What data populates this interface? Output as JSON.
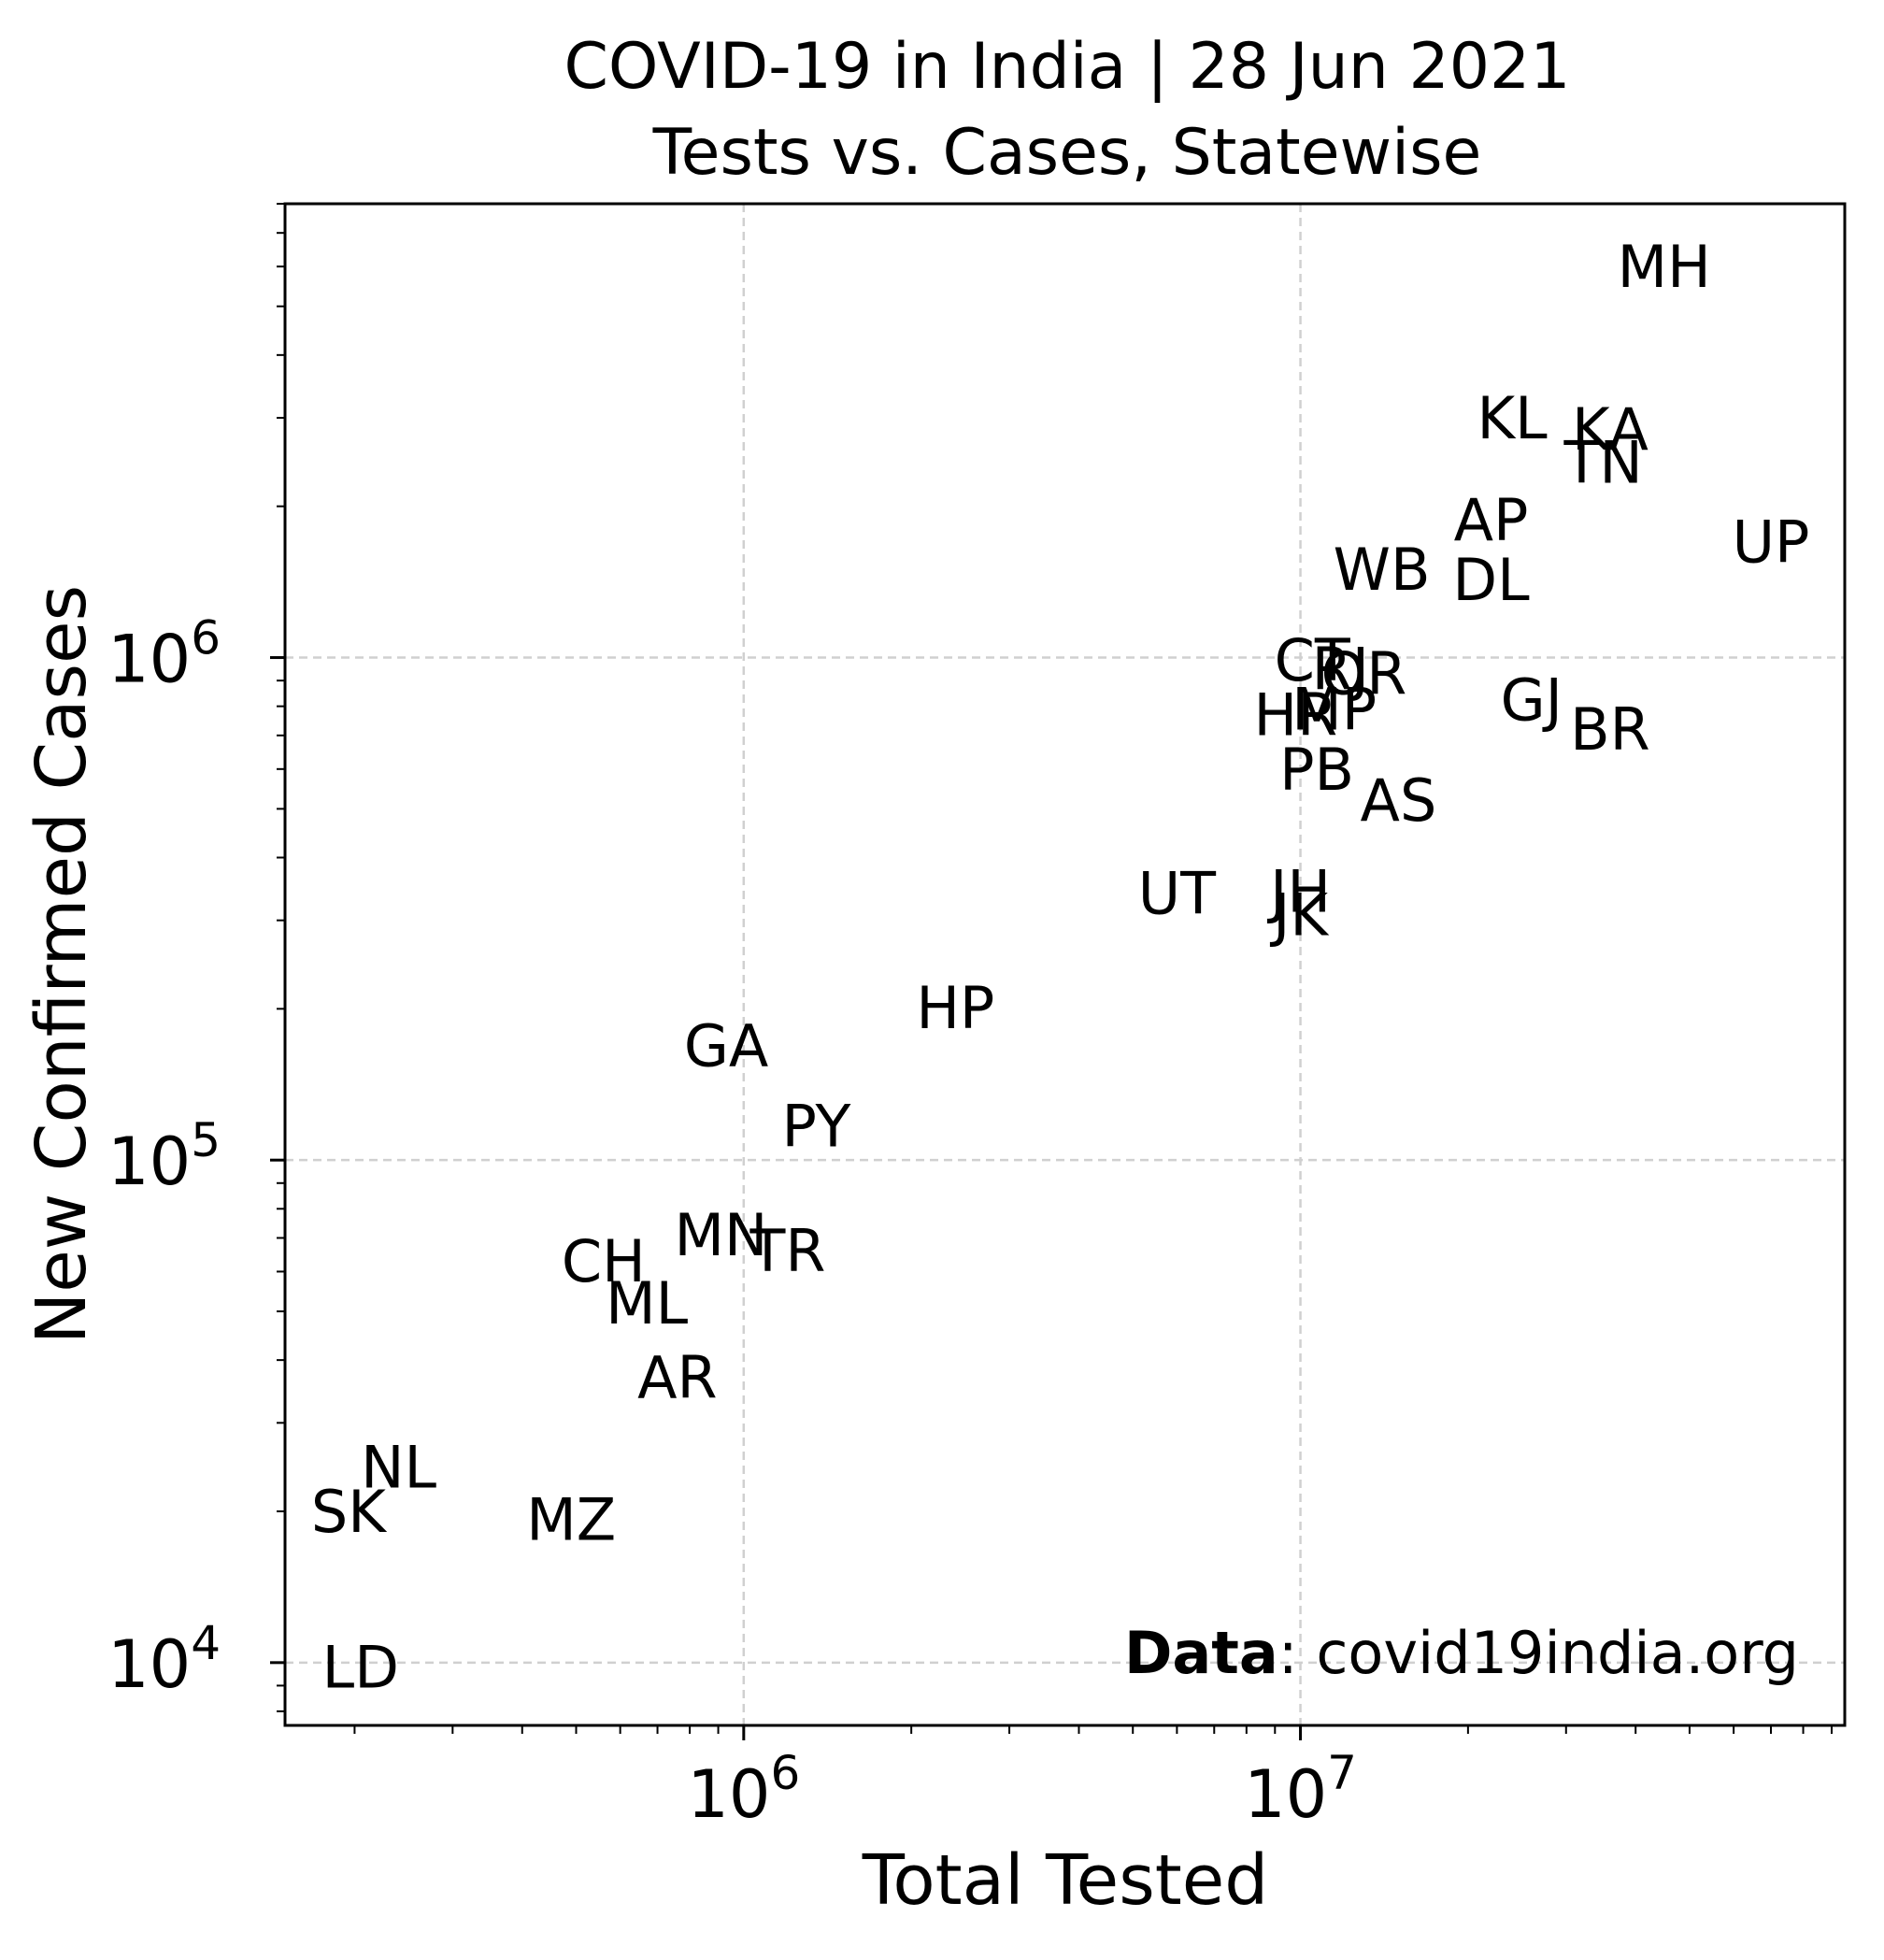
{
  "chart_data": {
    "type": "scatter",
    "title": [
      "COVID-19 in India  |  28 Jun 2021",
      "Tests vs. Cases, Statewise"
    ],
    "xlabel": "Total Tested",
    "ylabel": "New Confirmed Cases",
    "xscale": "log",
    "yscale": "log",
    "xlim": [
      150000,
      95000000
    ],
    "ylim": [
      7500,
      8000000
    ],
    "xticks": [
      {
        "value": 1000000,
        "label": "10^6"
      },
      {
        "value": 10000000,
        "label": "10^7"
      }
    ],
    "yticks": [
      {
        "value": 10000,
        "label": "10^4"
      },
      {
        "value": 100000,
        "label": "10^5"
      },
      {
        "value": 1000000,
        "label": "10^6"
      }
    ],
    "grid": true,
    "grid_style": "dashed",
    "marker": "text-label",
    "credit": {
      "bold": "Data",
      "rest": ": covid19india.org",
      "placement": "bottom-right"
    },
    "points": [
      {
        "label": "MH",
        "x": 45000000,
        "y": 6000000
      },
      {
        "label": "KL",
        "x": 24000000,
        "y": 3000000
      },
      {
        "label": "KA",
        "x": 36000000,
        "y": 2850000
      },
      {
        "label": "TN",
        "x": 35000000,
        "y": 2450000
      },
      {
        "label": "AP",
        "x": 22000000,
        "y": 1880000
      },
      {
        "label": "UP",
        "x": 70000000,
        "y": 1700000
      },
      {
        "label": "WB",
        "x": 14000000,
        "y": 1500000
      },
      {
        "label": "DL",
        "x": 22000000,
        "y": 1430000
      },
      {
        "label": "CT",
        "x": 10500000,
        "y": 990000
      },
      {
        "label": "RJ",
        "x": 11800000,
        "y": 950000
      },
      {
        "label": "OR",
        "x": 13000000,
        "y": 930000
      },
      {
        "label": "MP",
        "x": 11500000,
        "y": 790000
      },
      {
        "label": "HR",
        "x": 9800000,
        "y": 770000
      },
      {
        "label": "GJ",
        "x": 26000000,
        "y": 825000
      },
      {
        "label": "BR",
        "x": 36000000,
        "y": 720000
      },
      {
        "label": "PB",
        "x": 10700000,
        "y": 600000
      },
      {
        "label": "AS",
        "x": 15000000,
        "y": 520000
      },
      {
        "label": "UT",
        "x": 6000000,
        "y": 340000
      },
      {
        "label": "JH",
        "x": 10000000,
        "y": 343000
      },
      {
        "label": "JK",
        "x": 10000000,
        "y": 308000
      },
      {
        "label": "HP",
        "x": 2400000,
        "y": 201000
      },
      {
        "label": "GA",
        "x": 930000,
        "y": 169000
      },
      {
        "label": "PY",
        "x": 1350000,
        "y": 117000
      },
      {
        "label": "MN",
        "x": 910000,
        "y": 71000
      },
      {
        "label": "TR",
        "x": 1200000,
        "y": 66000
      },
      {
        "label": "CH",
        "x": 560000,
        "y": 63000
      },
      {
        "label": "ML",
        "x": 670000,
        "y": 52000
      },
      {
        "label": "AR",
        "x": 760000,
        "y": 37000
      },
      {
        "label": "NL",
        "x": 240000,
        "y": 24500
      },
      {
        "label": "SK",
        "x": 195000,
        "y": 20000
      },
      {
        "label": "MZ",
        "x": 490000,
        "y": 19300
      },
      {
        "label": "LD",
        "x": 205000,
        "y": 9800
      }
    ]
  }
}
